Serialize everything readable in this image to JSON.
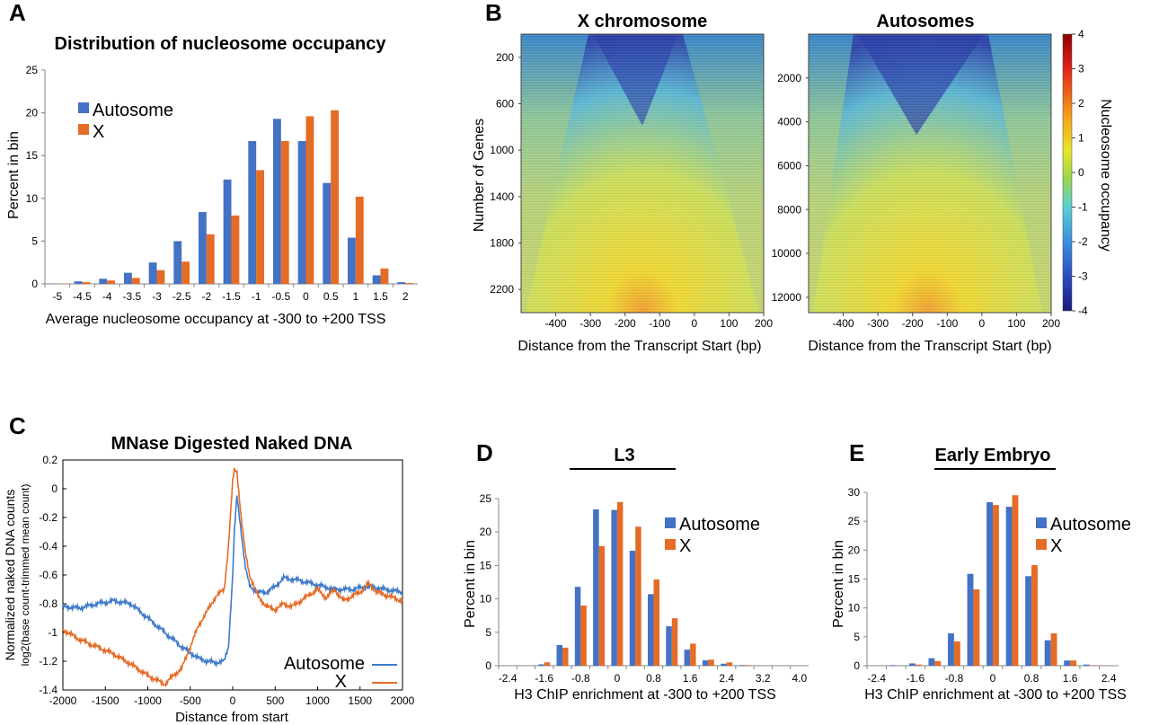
{
  "colors": {
    "autosome": "#4472C4",
    "x": "#E46C26",
    "axis": "#888888"
  },
  "chart_data": [
    {
      "id": "A",
      "type": "bar",
      "panel_label": "A",
      "title": "Distribution of nucleosome occupancy",
      "xlabel": "Average nucleosome occupancy at -300 to +200 TSS",
      "ylabel": "Percent in bin",
      "ylim": [
        0,
        25
      ],
      "yticks": [
        "0",
        "5",
        "10",
        "15",
        "20",
        "25"
      ],
      "categories": [
        "-5",
        "-4.5",
        "-4",
        "-3.5",
        "-3",
        "-2.5",
        "-2",
        "-1.5",
        "-1",
        "-0.5",
        "0",
        "0.5",
        "1",
        "1.5",
        "2"
      ],
      "series": [
        {
          "name": "Autosome",
          "values": [
            0.05,
            0.3,
            0.6,
            1.3,
            2.5,
            5.0,
            8.4,
            12.2,
            16.7,
            19.3,
            16.7,
            11.8,
            5.4,
            1.0,
            0.2
          ]
        },
        {
          "name": "X",
          "values": [
            0.02,
            0.2,
            0.4,
            0.7,
            1.6,
            2.6,
            5.8,
            8.0,
            13.3,
            16.7,
            19.6,
            20.3,
            10.2,
            1.8,
            0.1
          ]
        }
      ]
    },
    {
      "id": "C",
      "type": "line",
      "panel_label": "C",
      "title": "MNase Digested Naked DNA",
      "xlabel": "Distance from start",
      "ylabel_line1": "Normalized naked DNA counts",
      "ylabel_line2": "log2(base count-trimmed mean count)",
      "xlim": [
        -2000,
        2000
      ],
      "ylim": [
        -1.4,
        0.2
      ],
      "xticks": [
        "-2000",
        "-1500",
        "-1000",
        "-500",
        "0",
        "500",
        "1000",
        "1500",
        "2000"
      ],
      "yticks": [
        "0.2",
        "0",
        "-0.2",
        "-0.4",
        "-0.6",
        "-0.8",
        "-1",
        "-1.2",
        "-1.4"
      ],
      "series": [
        {
          "name": "Autosome",
          "x": [
            -2000,
            -1800,
            -1600,
            -1400,
            -1200,
            -1000,
            -800,
            -600,
            -400,
            -300,
            -200,
            -100,
            -50,
            0,
            20,
            50,
            100,
            150,
            200,
            300,
            400,
            500,
            600,
            800,
            1000,
            1200,
            1400,
            1600,
            1800,
            2000
          ],
          "y": [
            -0.82,
            -0.83,
            -0.8,
            -0.78,
            -0.8,
            -0.9,
            -1.0,
            -1.1,
            -1.18,
            -1.2,
            -1.21,
            -1.2,
            -1.1,
            -0.6,
            -0.3,
            -0.05,
            -0.3,
            -0.55,
            -0.68,
            -0.72,
            -0.72,
            -0.68,
            -0.62,
            -0.64,
            -0.67,
            -0.7,
            -0.7,
            -0.68,
            -0.7,
            -0.72
          ]
        },
        {
          "name": "X",
          "x": [
            -2000,
            -1800,
            -1600,
            -1400,
            -1200,
            -1000,
            -900,
            -800,
            -700,
            -600,
            -500,
            -400,
            -300,
            -200,
            -100,
            -50,
            0,
            20,
            50,
            100,
            150,
            200,
            300,
            400,
            500,
            600,
            700,
            800,
            1000,
            1100,
            1200,
            1300,
            1400,
            1500,
            1600,
            1700,
            1800,
            2000
          ],
          "y": [
            -0.98,
            -1.05,
            -1.1,
            -1.15,
            -1.22,
            -1.3,
            -1.33,
            -1.36,
            -1.3,
            -1.25,
            -1.1,
            -0.95,
            -0.85,
            -0.75,
            -0.7,
            -0.4,
            0.05,
            0.13,
            0.12,
            -0.2,
            -0.45,
            -0.6,
            -0.75,
            -0.82,
            -0.84,
            -0.8,
            -0.82,
            -0.78,
            -0.7,
            -0.76,
            -0.7,
            -0.78,
            -0.75,
            -0.72,
            -0.66,
            -0.72,
            -0.74,
            -0.78
          ]
        }
      ]
    },
    {
      "id": "D",
      "type": "bar",
      "panel_label": "D",
      "title": "L3",
      "xlabel": "H3 ChIP enrichment at -300 to +200 TSS",
      "ylabel": "Percent in bin",
      "ylim": [
        0,
        25
      ],
      "yticks": [
        "0",
        "5",
        "10",
        "15",
        "20",
        "25"
      ],
      "xtick_labels": [
        "-2.4",
        "-1.6",
        "-0.8",
        "0",
        "0.8",
        "1.6",
        "2.4",
        "3.2",
        "4.0"
      ],
      "categories": [
        "-2.4",
        "-2.0",
        "-1.6",
        "-1.2",
        "-0.8",
        "-0.4",
        "0",
        "0.4",
        "0.8",
        "1.2",
        "1.6",
        "2.0",
        "2.4",
        "2.8",
        "3.2",
        "3.6",
        "4.0"
      ],
      "series": [
        {
          "name": "Autosome",
          "values": [
            0,
            0,
            0.2,
            3.1,
            11.8,
            23.4,
            23.3,
            17.2,
            10.7,
            5.9,
            2.4,
            0.8,
            0.3,
            0.1,
            0,
            0,
            0
          ]
        },
        {
          "name": "X",
          "values": [
            0,
            0,
            0.5,
            2.7,
            9.0,
            17.9,
            24.5,
            20.8,
            12.9,
            7.1,
            3.3,
            0.9,
            0.5,
            0.1,
            0,
            0,
            0
          ]
        }
      ]
    },
    {
      "id": "E",
      "type": "bar",
      "panel_label": "E",
      "title": "Early Embryo",
      "xlabel": "H3 ChIP enrichment at -300 to +200 TSS",
      "ylabel": "Percent in bin",
      "ylim": [
        0,
        30
      ],
      "yticks": [
        "0",
        "5",
        "10",
        "15",
        "20",
        "25",
        "30"
      ],
      "xtick_labels": [
        "-2.4",
        "-1.6",
        "-0.8",
        "0",
        "0.8",
        "1.6",
        "2.4"
      ],
      "categories": [
        "-2.4",
        "-2.0",
        "-1.6",
        "-1.2",
        "-0.8",
        "-0.4",
        "0",
        "0.4",
        "0.8",
        "1.2",
        "1.6",
        "2.0",
        "2.4"
      ],
      "series": [
        {
          "name": "Autosome",
          "values": [
            0,
            0.1,
            0.4,
            1.3,
            5.6,
            15.9,
            28.3,
            27.5,
            15.5,
            4.4,
            0.9,
            0.2,
            0
          ]
        },
        {
          "name": "X",
          "values": [
            0,
            0,
            0.2,
            0.8,
            4.2,
            13.2,
            27.8,
            29.5,
            17.4,
            5.6,
            0.9,
            0.1,
            0
          ]
        }
      ]
    },
    {
      "id": "B",
      "type": "heatmap",
      "panel_label": "B",
      "colorbar_label": "Nucleosome occupancy",
      "colorbar_ticks": [
        "4",
        "3",
        "2",
        "1",
        "0",
        "-1",
        "-2",
        "-3",
        "-4"
      ],
      "xlabel": "Distance from the Transcript Start (bp)",
      "xticks": [
        "-400",
        "-300",
        "-200",
        "-100",
        "0",
        "100",
        "200"
      ],
      "maps": [
        {
          "title": "X chromosome",
          "ylabel": "Number of Genes",
          "yticks": [
            "200",
            "600",
            "1000",
            "1400",
            "1800",
            "2200"
          ],
          "ymax": 2400
        },
        {
          "title": "Autosomes",
          "ylabel": "",
          "yticks": [
            "2000",
            "4000",
            "6000",
            "8000",
            "10000",
            "12000"
          ],
          "ymax": 12700
        }
      ]
    }
  ]
}
